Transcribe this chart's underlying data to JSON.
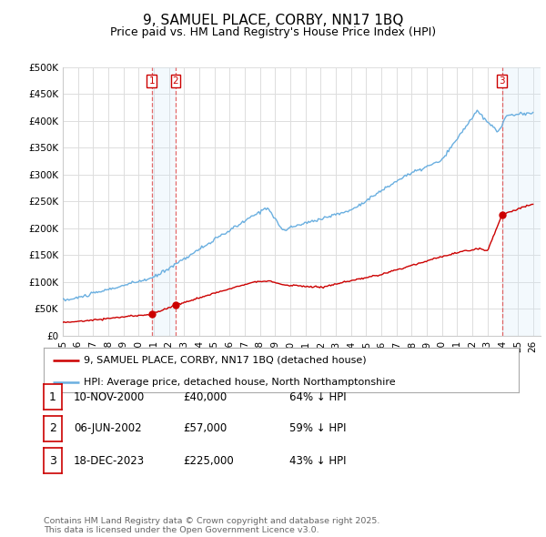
{
  "title": "9, SAMUEL PLACE, CORBY, NN17 1BQ",
  "subtitle": "Price paid vs. HM Land Registry's House Price Index (HPI)",
  "ylim": [
    0,
    500000
  ],
  "xlim_start": 1995.0,
  "xlim_end": 2026.5,
  "yticks": [
    0,
    50000,
    100000,
    150000,
    200000,
    250000,
    300000,
    350000,
    400000,
    450000,
    500000
  ],
  "ytick_labels": [
    "£0",
    "£50K",
    "£100K",
    "£150K",
    "£200K",
    "£250K",
    "£300K",
    "£350K",
    "£400K",
    "£450K",
    "£500K"
  ],
  "xticks": [
    1995,
    1996,
    1997,
    1998,
    1999,
    2000,
    2001,
    2002,
    2003,
    2004,
    2005,
    2006,
    2007,
    2008,
    2009,
    2010,
    2011,
    2012,
    2013,
    2014,
    2015,
    2016,
    2017,
    2018,
    2019,
    2020,
    2021,
    2022,
    2023,
    2024,
    2025,
    2026
  ],
  "hpi_color": "#6aafe0",
  "price_color": "#cc0000",
  "background_color": "#ffffff",
  "grid_color": "#dddddd",
  "span_color": "#d0e8f8",
  "sales": [
    {
      "num": 1,
      "year": 2000.87,
      "price": 40000,
      "label": "1",
      "date": "10-NOV-2000",
      "price_str": "£40,000",
      "pct": "64% ↓ HPI"
    },
    {
      "num": 2,
      "year": 2002.44,
      "price": 57000,
      "label": "2",
      "date": "06-JUN-2002",
      "price_str": "£57,000",
      "pct": "59% ↓ HPI"
    },
    {
      "num": 3,
      "year": 2023.96,
      "price": 225000,
      "label": "3",
      "date": "18-DEC-2023",
      "price_str": "£225,000",
      "pct": "43% ↓ HPI"
    }
  ],
  "legend_entries": [
    {
      "label": "9, SAMUEL PLACE, CORBY, NN17 1BQ (detached house)",
      "color": "#cc0000"
    },
    {
      "label": "HPI: Average price, detached house, North Northamptonshire",
      "color": "#6aafe0"
    }
  ],
  "footer": "Contains HM Land Registry data © Crown copyright and database right 2025.\nThis data is licensed under the Open Government Licence v3.0.",
  "title_fontsize": 11,
  "subtitle_fontsize": 9
}
